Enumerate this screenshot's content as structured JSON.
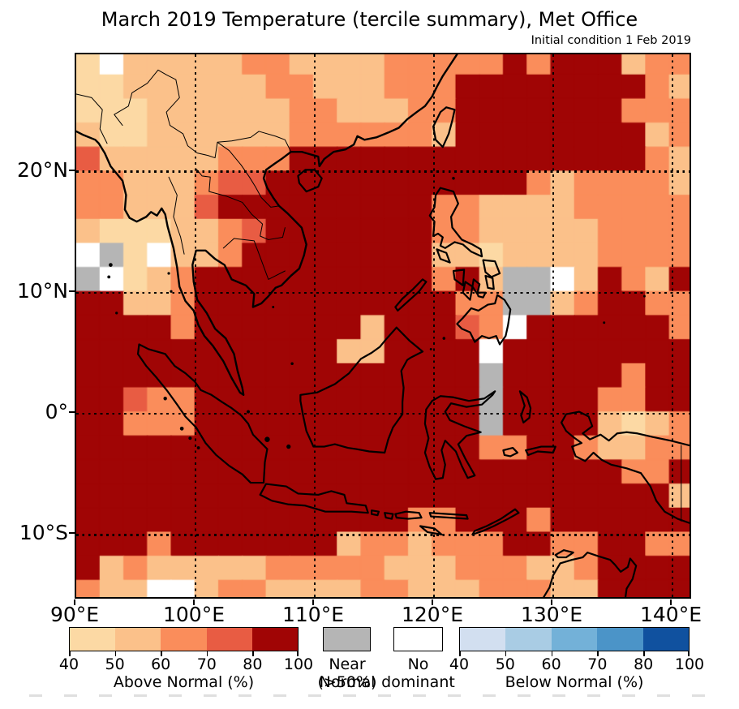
{
  "figure": {
    "title": "March 2019 Temperature (tercile summary), Met Office",
    "subtitle": "Initial condition 1 Feb 2019"
  },
  "chart_data": {
    "type": "heatmap",
    "title": "March 2019 Temperature (tercile summary), Met Office",
    "subtitle": "Initial condition 1 Feb 2019",
    "x_axis": {
      "ticks": [
        90,
        100,
        110,
        120,
        130,
        140
      ],
      "tick_labels": [
        "90°E",
        "100°E",
        "110°E",
        "120°E",
        "130°E",
        "140°E"
      ],
      "range": [
        90,
        141.7
      ],
      "grid": "dotted"
    },
    "y_axis": {
      "ticks": [
        20,
        10,
        0,
        -10
      ],
      "tick_labels": [
        "20°N",
        "10°N",
        "0°",
        "10°S"
      ],
      "range": [
        -15.4,
        29.7
      ],
      "grid": "dotted"
    },
    "grid": {
      "cell_deg": 2,
      "origin_lon": 90,
      "origin_lat": 30,
      "palette": {
        "a": "#FCD9A4",
        "b": "#FBC18A",
        "c": "#FA8D5B",
        "d": "#E85C43",
        "e": "#A00505",
        "n": "#B5B5B5",
        "w": "#FFFFFF"
      },
      "legend_key": {
        "a": "Above Normal 40-50%",
        "b": "Above Normal 50-60%",
        "c": "Above Normal 60-70%",
        "d": "Above Normal 70-80%",
        "e": "Above Normal 80-100%",
        "n": "Near Normal (>50%)",
        "w": "No dominant"
      },
      "rows": [
        "awbbbbbccbbbbccccceceeebcc",
        "aabbbbbbccbbbccceeeeeeeecb",
        "aaabbbbbbccbbbcceeeeeeeccc",
        "baabbbbbbccccccbeeeeeeeebc",
        "dbbbbbccceeeeeeeeeeeeeeecb",
        "ccbbbcddeeeeeeeeeeecbccccb",
        "ccbbbdeeeeeeeeeccbbbbccccc",
        "baaabbcdeeeeeeeccbbbbbcccc",
        "wnawbbceeeeeeeebbabbbbcccc",
        "nwabceeeeeeeeeecebnnwbecbe",
        "eebbceeeeeeeeeeeccnnbceecc",
        "eeeeceeeeeeebeeedcweeeeeec",
        "eeeeeeeeeeebbeeeeweeeeeeee",
        "eeeeeeeeeeeeeeeeeneeeeecee",
        "eedcceeeeeeeeeeeeneeeeccee",
        "eeccceeeeeeeeeeeeneeeebabc",
        "eeeeeeeeeeeeeeeeecceecbbcc",
        "eeeeeeeeeeeeeeeeeeeeeeecce",
        "eeeeeeeeeeeeeeeeeeeeeeeeeb",
        "eeeeeeeeeeeeeecceeeceeeeee",
        "eeeceeeeeeebccbccceecceecc",
        "ebcbbbbbcccccbbbcccbbceeee",
        "cbbwwbccbbbbccbbbcccbbeeee"
      ]
    },
    "legend": {
      "above": {
        "caption": "Above Normal (%)",
        "tick_labels": [
          "40",
          "50",
          "60",
          "70",
          "80",
          "100"
        ],
        "colors": [
          "#FCD9A4",
          "#FBC18A",
          "#FA8D5B",
          "#E85C43",
          "#A00505"
        ]
      },
      "near_normal": {
        "line1": "Near Normal",
        "line2": "(>50%)",
        "color": "#B5B5B5"
      },
      "no_dominant": {
        "line1": "No",
        "line2": "dominant",
        "color": "#FFFFFF"
      },
      "below": {
        "caption": "Below Normal (%)",
        "tick_labels": [
          "40",
          "50",
          "60",
          "70",
          "80",
          "100"
        ],
        "colors": [
          "#D2DFF0",
          "#A9CCE4",
          "#73B1D8",
          "#4B94C8",
          "#10519F"
        ]
      }
    }
  }
}
